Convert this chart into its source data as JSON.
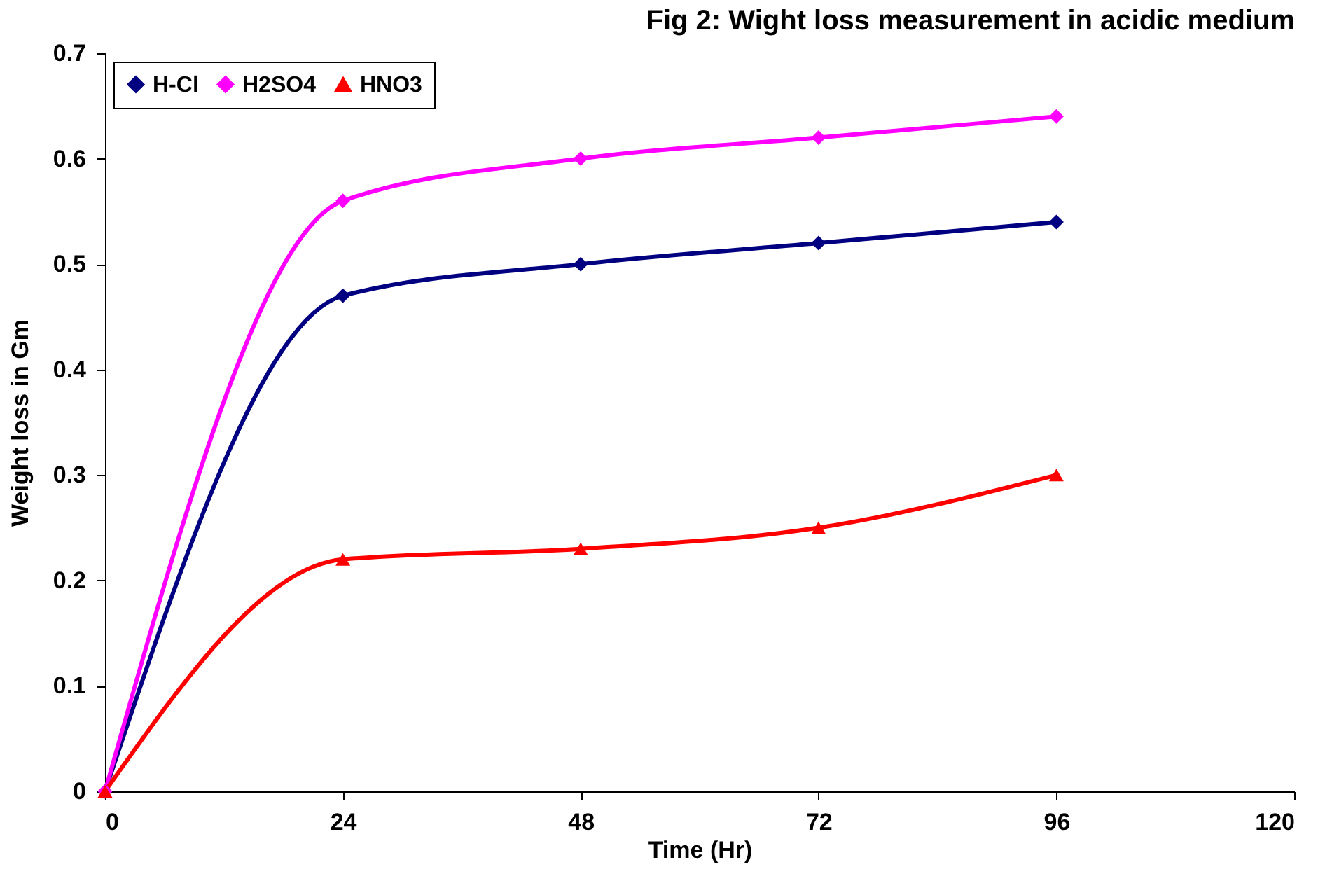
{
  "chart_data": {
    "type": "line",
    "title": "Fig 2: Wight loss measurement in acidic medium",
    "xlabel": "Time (Hr)",
    "ylabel": "Weight loss in Gm",
    "x": [
      0,
      24,
      48,
      72,
      96
    ],
    "series": [
      {
        "name": "H-Cl",
        "color": "#000080",
        "marker": "diamond",
        "values": [
          0,
          0.47,
          0.5,
          0.52,
          0.54
        ]
      },
      {
        "name": "H2SO4",
        "color": "#ff00ff",
        "marker": "diamond",
        "values": [
          0,
          0.56,
          0.6,
          0.62,
          0.64
        ]
      },
      {
        "name": "HNO3",
        "color": "#ff0000",
        "marker": "triangle",
        "values": [
          0,
          0.22,
          0.23,
          0.25,
          0.3
        ]
      }
    ],
    "xlim": [
      0,
      120
    ],
    "xticks": [
      0,
      24,
      48,
      72,
      96,
      120
    ],
    "ylim": [
      0,
      0.7
    ],
    "yticks": [
      0,
      0.1,
      0.2,
      0.3,
      0.4,
      0.5,
      0.6,
      0.7
    ],
    "grid": false,
    "legend": "top left",
    "line_style": "solid"
  }
}
